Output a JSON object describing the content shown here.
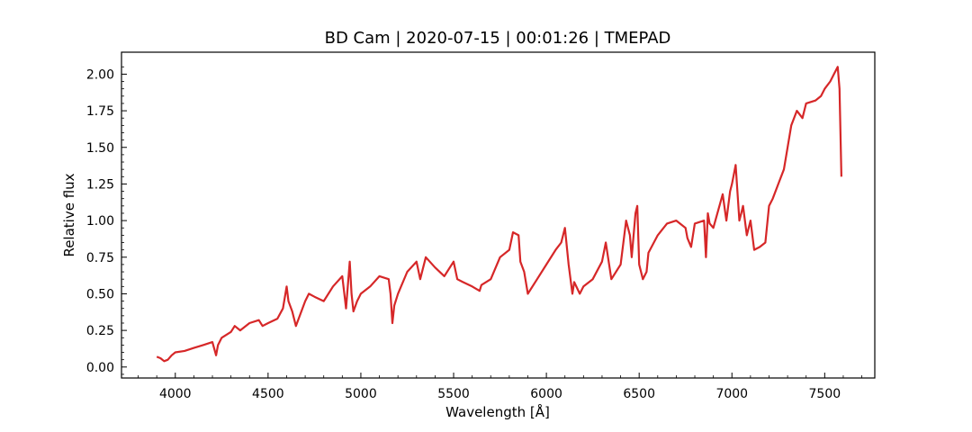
{
  "chart_data": {
    "type": "line",
    "title": "BD Cam | 2020-07-15 | 00:01:26 | TMEPAD",
    "xlabel": "Wavelength [Å]",
    "ylabel": "Relative flux",
    "xlim": [
      3710,
      7770
    ],
    "ylim": [
      -0.075,
      2.15
    ],
    "x_ticks": [
      4000,
      4500,
      5000,
      5500,
      6000,
      6500,
      7000,
      7500
    ],
    "y_ticks": [
      0.0,
      0.25,
      0.5,
      0.75,
      1.0,
      1.25,
      1.5,
      1.75,
      2.0
    ],
    "x_tick_labels": [
      "4000",
      "4500",
      "5000",
      "5500",
      "6000",
      "6500",
      "7000",
      "7500"
    ],
    "y_tick_labels": [
      "0.00",
      "0.25",
      "0.50",
      "0.75",
      "1.00",
      "1.25",
      "1.50",
      "1.75",
      "2.00"
    ],
    "grid": false,
    "line_color": "#d62728",
    "series": [
      {
        "x": [
          3900,
          3920,
          3940,
          3960,
          3980,
          4000,
          4050,
          4100,
          4150,
          4200,
          4220,
          4230,
          4250,
          4300,
          4320,
          4350,
          4400,
          4450,
          4470,
          4500,
          4550,
          4580,
          4600,
          4610,
          4630,
          4650,
          4700,
          4720,
          4750,
          4800,
          4850,
          4900,
          4920,
          4940,
          4950,
          4960,
          4980,
          5000,
          5050,
          5100,
          5150,
          5160,
          5170,
          5180,
          5200,
          5250,
          5300,
          5320,
          5350,
          5400,
          5450,
          5500,
          5520,
          5550,
          5600,
          5640,
          5650,
          5700,
          5750,
          5800,
          5820,
          5850,
          5860,
          5880,
          5900,
          5950,
          6000,
          6050,
          6080,
          6100,
          6120,
          6140,
          6150,
          6180,
          6200,
          6250,
          6300,
          6320,
          6350,
          6400,
          6430,
          6450,
          6460,
          6480,
          6490,
          6500,
          6520,
          6540,
          6550,
          6600,
          6650,
          6700,
          6750,
          6760,
          6780,
          6800,
          6850,
          6860,
          6870,
          6880,
          6900,
          6950,
          6970,
          6990,
          7000,
          7020,
          7040,
          7050,
          7060,
          7080,
          7100,
          7120,
          7150,
          7180,
          7200,
          7220,
          7250,
          7280,
          7300,
          7320,
          7350,
          7380,
          7400,
          7450,
          7480,
          7500,
          7530,
          7550,
          7570,
          7580,
          7590
        ],
        "y": [
          0.07,
          0.06,
          0.04,
          0.05,
          0.08,
          0.1,
          0.11,
          0.13,
          0.15,
          0.17,
          0.08,
          0.15,
          0.2,
          0.24,
          0.28,
          0.25,
          0.3,
          0.32,
          0.28,
          0.3,
          0.33,
          0.4,
          0.55,
          0.45,
          0.38,
          0.28,
          0.45,
          0.5,
          0.48,
          0.45,
          0.55,
          0.62,
          0.4,
          0.72,
          0.5,
          0.38,
          0.45,
          0.5,
          0.55,
          0.62,
          0.6,
          0.5,
          0.3,
          0.42,
          0.5,
          0.65,
          0.72,
          0.6,
          0.75,
          0.68,
          0.62,
          0.72,
          0.6,
          0.58,
          0.55,
          0.52,
          0.56,
          0.6,
          0.75,
          0.8,
          0.92,
          0.9,
          0.72,
          0.65,
          0.5,
          0.6,
          0.7,
          0.8,
          0.85,
          0.95,
          0.7,
          0.5,
          0.58,
          0.5,
          0.55,
          0.6,
          0.72,
          0.85,
          0.6,
          0.7,
          1.0,
          0.9,
          0.75,
          1.05,
          1.1,
          0.7,
          0.6,
          0.65,
          0.78,
          0.9,
          0.98,
          1.0,
          0.95,
          0.88,
          0.82,
          0.98,
          1.0,
          0.75,
          1.05,
          0.98,
          0.95,
          1.18,
          1.0,
          1.2,
          1.25,
          1.38,
          1.0,
          1.05,
          1.1,
          0.9,
          1.0,
          0.8,
          0.82,
          0.85,
          1.1,
          1.15,
          1.25,
          1.35,
          1.5,
          1.65,
          1.75,
          1.7,
          1.8,
          1.82,
          1.85,
          1.9,
          1.95,
          2.0,
          2.05,
          1.9,
          1.3
        ]
      }
    ]
  }
}
